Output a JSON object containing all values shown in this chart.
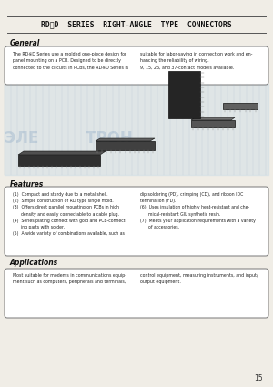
{
  "title": "RD※D  SERIES  RIGHT-ANGLE  TYPE  CONNECTORS",
  "bg_color": "#f0ede6",
  "page_number": "15",
  "general_heading": "General",
  "general_text_left": "The RD※D Series use a molded one-piece design for\npanel mounting on a PCB. Designed to be directly\nconnected to the circuits in PCBs, the RD※D Series is",
  "general_text_right": "suitable for labor-saving in connection work and en-\nhancing the reliability of wiring.\n9, 15, 26, and 37-contact models available.",
  "features_heading": "Features",
  "features_left": "(1)  Compact and sturdy due to a metal shell.\n(2)  Simple construction of RD type single mold.\n(3)  Offers direct parallel mounting on PCBs in high\n      density and easily connectable to a cable plug.\n(4)  Series plating connect with gold and PCB-connect-\n      ing parts with solder.\n(5)  A wide variety of combinations available, such as",
  "features_right": "dip soldering (PD), crimping (CD), and ribbon IDC\ntermination (FD).\n(6)  Uses insulation of highly heat-resistant and che-\n      mical-resistant GIL synthetic resin.\n(7)  Meets your application requirements with a variety\n      of accessories.",
  "applications_heading": "Applications",
  "applications_text_left": "Most suitable for modems in communications equip-\nment such as computers, peripherals and terminals,",
  "applications_text_right": "control equipment, measuring instruments, and input/\noutput equipment."
}
